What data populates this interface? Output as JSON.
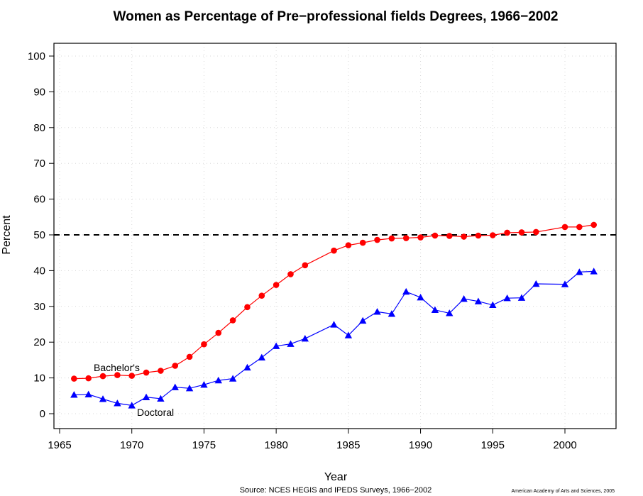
{
  "chart_data": {
    "type": "line",
    "title": "Women as Percentage of Pre−professional fields Degrees, 1966−2002",
    "xlabel": "Year",
    "ylabel": "Percent",
    "xlim": [
      1965,
      2003
    ],
    "ylim": [
      0,
      100
    ],
    "x_ticks": [
      "1965",
      "1970",
      "1975",
      "1980",
      "1985",
      "1990",
      "1995",
      "2000"
    ],
    "y_ticks": [
      "0",
      "10",
      "20",
      "30",
      "40",
      "50",
      "60",
      "70",
      "80",
      "90",
      "100"
    ],
    "grid": true,
    "reference_line": 50,
    "series": [
      {
        "name": "Bachelor's",
        "color": "#ff0000",
        "marker": "circle",
        "x": [
          1966,
          1967,
          1968,
          1969,
          1970,
          1971,
          1972,
          1973,
          1974,
          1975,
          1976,
          1977,
          1978,
          1979,
          1980,
          1981,
          1982,
          1984,
          1985,
          1986,
          1987,
          1988,
          1989,
          1990,
          1991,
          1992,
          1993,
          1994,
          1995,
          1996,
          1997,
          1998,
          2000,
          2001,
          2002
        ],
        "y": [
          9.8,
          9.9,
          10.5,
          10.8,
          10.6,
          11.5,
          12.0,
          13.4,
          15.9,
          19.4,
          22.6,
          26.1,
          29.8,
          33.0,
          36.0,
          39.0,
          41.5,
          45.6,
          47.1,
          47.8,
          48.6,
          49.0,
          49.1,
          49.3,
          49.8,
          49.7,
          49.5,
          49.8,
          49.9,
          50.6,
          50.7,
          50.8,
          52.2,
          52.2,
          52.8
        ]
      },
      {
        "name": "Doctoral",
        "color": "#0000ff",
        "marker": "triangle",
        "x": [
          1966,
          1967,
          1968,
          1969,
          1970,
          1971,
          1972,
          1973,
          1974,
          1975,
          1976,
          1977,
          1978,
          1979,
          1980,
          1981,
          1982,
          1984,
          1985,
          1986,
          1987,
          1988,
          1989,
          1990,
          1991,
          1992,
          1993,
          1994,
          1995,
          1996,
          1997,
          1998,
          2000,
          2001,
          2002
        ],
        "y": [
          5.3,
          5.4,
          4.1,
          2.9,
          2.3,
          4.6,
          4.2,
          7.4,
          7.1,
          8.1,
          9.3,
          9.8,
          12.9,
          15.7,
          18.9,
          19.5,
          21.0,
          24.9,
          21.9,
          26.0,
          28.5,
          27.9,
          34.1,
          32.5,
          29.0,
          28.1,
          32.1,
          31.4,
          30.4,
          32.3,
          32.4,
          36.3,
          36.2,
          39.6,
          39.8
        ]
      }
    ],
    "source": "Source: NCES HEGIS and IPEDS Surveys, 1966−2002",
    "credit": "American Academy of Arts and Sciences, 2005"
  }
}
